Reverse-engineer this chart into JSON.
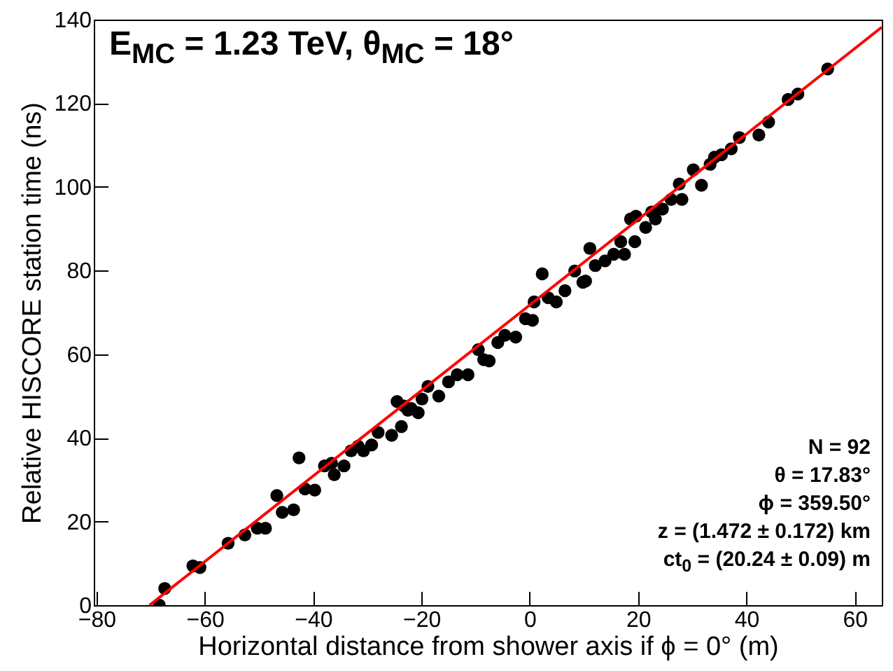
{
  "chart_data": {
    "type": "scatter",
    "xlabel": "Horizontal distance from shower axis if ϕ = 0° (m)",
    "ylabel": "Relative HISCORE station time (ns)",
    "xlim": [
      -80.5,
      65
    ],
    "ylim": [
      0,
      140
    ],
    "xticks": [
      -80,
      -60,
      -40,
      -20,
      0,
      20,
      40,
      60
    ],
    "yticks": [
      0,
      20,
      40,
      60,
      80,
      100,
      120,
      140
    ],
    "grid": false,
    "annotations": [
      "E$_{MC}$ = 1.23 TeV, θ$_{MC}$ = 18°",
      "N = 92",
      "θ = 17.83°",
      "ϕ = 359.50°",
      "z = (1.472 ± 0.172) km",
      "ct$_{0}$ = (20.24 ± 0.09) m"
    ],
    "series": [
      {
        "marker": "circle",
        "color": "#000000",
        "x": [
          -68.4,
          -67.4,
          -62.2,
          -60.9,
          -55.7,
          -52.6,
          -50.3,
          -48.8,
          -46.7,
          -45.7,
          -43.6,
          -42.6,
          -41.5,
          -39.7,
          -37.9,
          -36.6,
          -36.1,
          -34.3,
          -33.0,
          -31.7,
          -30.7,
          -29.2,
          -28.0,
          -25.5,
          -24.5,
          -23.7,
          -23.2,
          -21.9,
          -22.5,
          -20.6,
          -19.9,
          -18.8,
          -16.8,
          -15.0,
          -13.4,
          -11.4,
          -9.5,
          -8.5,
          -7.5,
          -5.9,
          -4.6,
          -2.6,
          -0.8,
          0.5,
          0.8,
          2.3,
          3.4,
          4.9,
          6.5,
          8.3,
          9.8,
          10.3,
          11.1,
          12.1,
          13.9,
          15.5,
          16.8,
          17.5,
          18.6,
          19.6,
          19.4,
          21.4,
          22.5,
          23.2,
          24.5,
          26.1,
          27.6,
          28.1,
          30.2,
          31.7,
          33.3,
          34.1,
          35.4,
          37.2,
          38.7,
          42.3,
          44.1,
          47.7,
          49.5,
          55.0
        ],
        "values": [
          0,
          4.0,
          9.4,
          9.0,
          14.8,
          16.8,
          18.4,
          18.4,
          26.2,
          22.2,
          22.8,
          35.2,
          27.8,
          27.5,
          33.3,
          33.9,
          31.2,
          33.3,
          36.9,
          38.0,
          36.9,
          38.3,
          41.3,
          40.6,
          48.7,
          42.7,
          47.6,
          47.0,
          46.6,
          46.0,
          49.3,
          52.3,
          50.0,
          53.4,
          55.1,
          55.1,
          61.1,
          58.7,
          58.4,
          62.8,
          64.5,
          64.1,
          68.5,
          68.1,
          72.5,
          79.2,
          73.5,
          72.5,
          75.2,
          79.9,
          77.2,
          77.5,
          85.3,
          81.2,
          82.3,
          83.9,
          86.9,
          83.9,
          92.3,
          93.0,
          86.9,
          90.3,
          94.0,
          92.3,
          94.7,
          97.0,
          100.7,
          97.0,
          104.1,
          100.4,
          105.4,
          107.1,
          107.7,
          109.1,
          111.8,
          112.4,
          115.5,
          120.9,
          122.2,
          128.2
        ]
      },
      {
        "type": "line",
        "color": "#ff0000",
        "x": [
          -70.2,
          65
        ],
        "values": [
          0,
          138.2
        ]
      }
    ]
  }
}
